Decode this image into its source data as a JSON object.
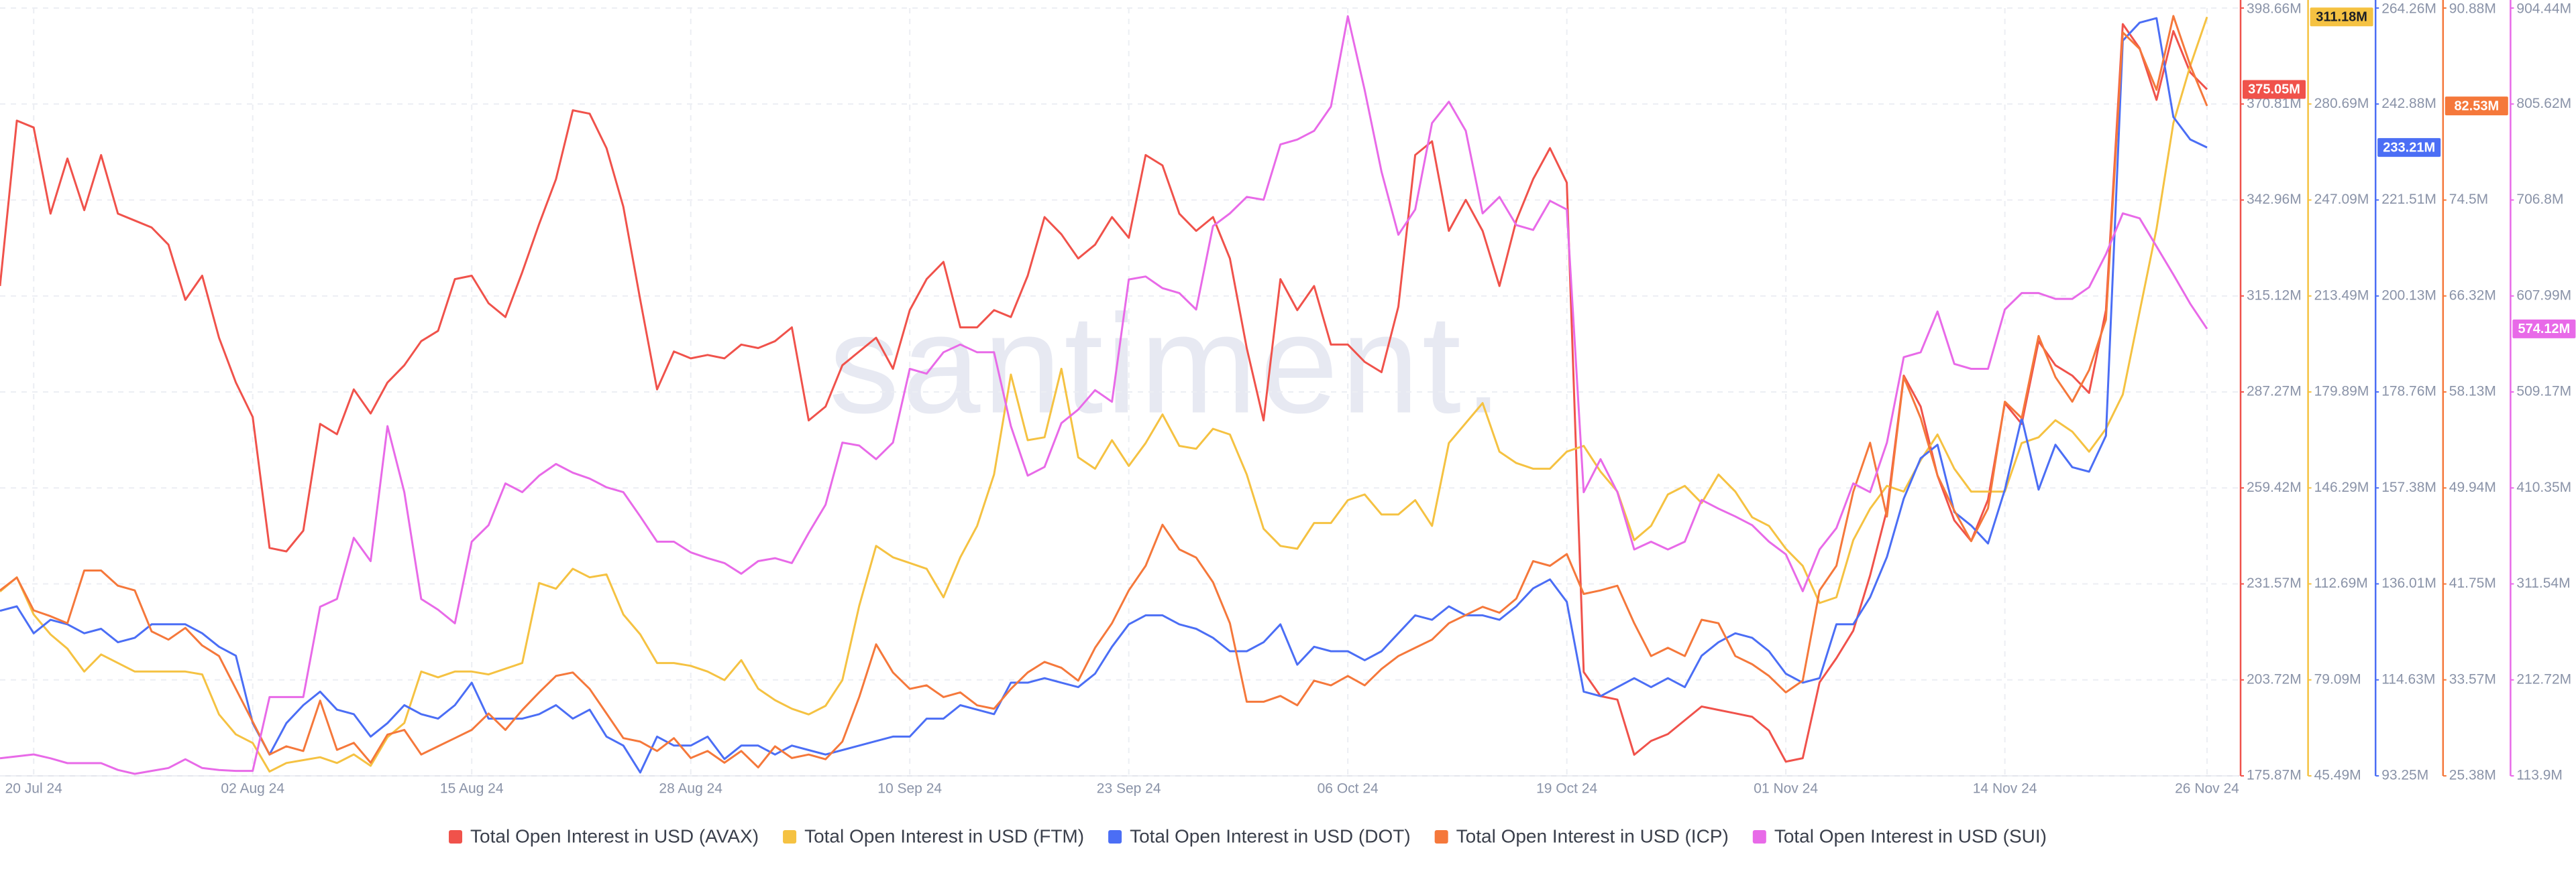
{
  "chart_data": {
    "type": "line",
    "grid": true,
    "watermark": "santiment.",
    "categories": [
      null,
      null,
      "20 Jul 24",
      null,
      null,
      null,
      null,
      null,
      null,
      null,
      null,
      null,
      null,
      null,
      null,
      "02 Aug 24",
      null,
      null,
      null,
      null,
      null,
      null,
      null,
      null,
      null,
      null,
      null,
      null,
      "15 Aug 24",
      null,
      null,
      null,
      null,
      null,
      null,
      null,
      null,
      null,
      null,
      null,
      null,
      "28 Aug 24",
      null,
      null,
      null,
      null,
      null,
      null,
      null,
      null,
      null,
      null,
      null,
      null,
      "10 Sep 24",
      null,
      null,
      null,
      null,
      null,
      null,
      null,
      null,
      null,
      null,
      null,
      null,
      "23 Sep 24",
      null,
      null,
      null,
      null,
      null,
      null,
      null,
      null,
      null,
      null,
      null,
      null,
      "06 Oct 24",
      null,
      null,
      null,
      null,
      null,
      null,
      null,
      null,
      null,
      null,
      null,
      null,
      "19 Oct 24",
      null,
      null,
      null,
      null,
      null,
      null,
      null,
      null,
      null,
      null,
      null,
      null,
      "01 Nov 24",
      null,
      null,
      null,
      null,
      null,
      null,
      null,
      null,
      null,
      null,
      null,
      null,
      "14 Nov 24",
      null,
      null,
      null,
      null,
      null,
      null,
      null,
      null,
      null,
      null,
      null,
      "26 Nov 24"
    ],
    "series": [
      {
        "name": "Total Open Interest in USD (AVAX)",
        "color": "#f0524b",
        "value_label": "375.05M",
        "ylim": [
          175.87,
          398.66
        ],
        "yticks": [
          {
            "value": 175.87,
            "label": "175.87M"
          },
          {
            "value": 203.72,
            "label": "203.72M"
          },
          {
            "value": 231.57,
            "label": "231.57M"
          },
          {
            "value": 259.42,
            "label": "259.42M"
          },
          {
            "value": 287.27,
            "label": "287.27M"
          },
          {
            "value": 315.12,
            "label": "315.12M"
          },
          {
            "value": 342.96,
            "label": "342.96M"
          },
          {
            "value": 370.81,
            "label": "370.81M"
          },
          {
            "value": 398.66,
            "label": "398.66M"
          }
        ],
        "values": [
          318,
          366,
          364,
          339,
          355,
          340,
          356,
          339,
          337,
          335,
          330,
          314,
          321,
          303,
          290,
          280,
          242,
          241,
          247,
          278,
          275,
          288,
          281,
          290,
          295,
          302,
          305,
          320,
          321,
          313,
          309,
          322,
          336,
          349,
          369,
          368,
          358,
          341,
          314,
          288,
          299,
          297,
          298,
          297,
          301,
          300,
          302,
          306,
          279,
          283,
          295,
          299,
          303,
          294,
          311,
          320,
          325,
          306,
          306,
          311,
          309,
          321,
          338,
          333,
          326,
          330,
          338,
          332,
          356,
          353,
          339,
          334,
          338,
          326,
          300,
          279,
          320,
          311,
          318,
          301,
          301,
          296,
          293,
          312,
          356,
          360,
          334,
          343,
          334,
          318,
          337,
          349,
          358,
          348,
          206,
          199,
          198,
          182,
          186,
          188,
          192,
          196,
          195,
          194,
          193,
          189,
          180,
          181,
          203,
          210,
          218,
          234,
          253,
          292,
          283,
          263,
          250,
          244,
          256,
          284,
          278,
          302,
          295,
          292,
          287,
          311,
          394,
          387,
          372,
          392,
          380,
          375.05
        ]
      },
      {
        "name": "Total Open Interest in USD (FTM)",
        "color": "#f5c242",
        "value_label": "311.18M",
        "ylim": [
          45.49,
          314.29
        ],
        "yticks": [
          {
            "value": 45.49,
            "label": "45.49M"
          },
          {
            "value": 79.09,
            "label": "79.09M"
          },
          {
            "value": 112.69,
            "label": "112.69M"
          },
          {
            "value": 146.29,
            "label": "146.29M"
          },
          {
            "value": 179.89,
            "label": "179.89M"
          },
          {
            "value": 213.49,
            "label": "213.49M"
          },
          {
            "value": 247.09,
            "label": "247.09M"
          },
          {
            "value": 280.69,
            "label": "280.69M"
          }
        ],
        "values": [
          110,
          115,
          102,
          95,
          90,
          82,
          88,
          85,
          82,
          82,
          82,
          82,
          81,
          67,
          60,
          57,
          47,
          50,
          51,
          52,
          50,
          53,
          49,
          59,
          64,
          82,
          80,
          82,
          82,
          81,
          83,
          85,
          113,
          111,
          118,
          115,
          116,
          102,
          95,
          85,
          85,
          84,
          82,
          79,
          86,
          76,
          72,
          69,
          67,
          70,
          79,
          105,
          126,
          122,
          120,
          118,
          108,
          122,
          133,
          151,
          186,
          163,
          164,
          188,
          157,
          153,
          163,
          154,
          162,
          172,
          161,
          160,
          167,
          165,
          151,
          132,
          126,
          125,
          134,
          134,
          142,
          144,
          137,
          137,
          142,
          133,
          162,
          169,
          176,
          159,
          155,
          153,
          153,
          159,
          161,
          152,
          145,
          128,
          133,
          144,
          147,
          141,
          151,
          145,
          136,
          133,
          125,
          119,
          106,
          108,
          128,
          139,
          147,
          145,
          156,
          165,
          153,
          145,
          145,
          145,
          162,
          164,
          170,
          166,
          159,
          167,
          179,
          208,
          237,
          274,
          294,
          311.18
        ]
      },
      {
        "name": "Total Open Interest in USD (DOT)",
        "color": "#4b6ef5",
        "value_label": "233.21M",
        "ylim": [
          93.25,
          264.26
        ],
        "yticks": [
          {
            "value": 93.25,
            "label": "93.25M"
          },
          {
            "value": 114.63,
            "label": "114.63M"
          },
          {
            "value": 136.01,
            "label": "136.01M"
          },
          {
            "value": 157.38,
            "label": "157.38M"
          },
          {
            "value": 178.76,
            "label": "178.76M"
          },
          {
            "value": 200.13,
            "label": "200.13M"
          },
          {
            "value": 221.51,
            "label": "221.51M"
          },
          {
            "value": 242.88,
            "label": "242.88M"
          },
          {
            "value": 264.26,
            "label": "264.26M"
          }
        ],
        "values": [
          130,
          131,
          125,
          128,
          127,
          125,
          126,
          123,
          124,
          127,
          127,
          127,
          125,
          122,
          120,
          105,
          98,
          105,
          109,
          112,
          108,
          107,
          102,
          105,
          109,
          107,
          106,
          109,
          114,
          106,
          106,
          106,
          107,
          109,
          106,
          108,
          102,
          100,
          94,
          102,
          100,
          100,
          102,
          97,
          100,
          100,
          98,
          100,
          99,
          98,
          99,
          100,
          101,
          102,
          102,
          106,
          106,
          109,
          108,
          107,
          114,
          114,
          115,
          114,
          113,
          116,
          122,
          127,
          129,
          129,
          127,
          126,
          124,
          121,
          121,
          123,
          127,
          118,
          122,
          121,
          121,
          119,
          121,
          125,
          129,
          128,
          131,
          129,
          129,
          128,
          131,
          135,
          137,
          132,
          112,
          111,
          113,
          115,
          113,
          115,
          113,
          120,
          123,
          125,
          124,
          121,
          116,
          114,
          115,
          127,
          127,
          133,
          142,
          155,
          164,
          167,
          152,
          149,
          145,
          157,
          173,
          157,
          167,
          162,
          161,
          169,
          257,
          261,
          262,
          240,
          235,
          233.21
        ]
      },
      {
        "name": "Total Open Interest in USD (ICP)",
        "color": "#f5783b",
        "value_label": "82.53M",
        "ylim": [
          25.38,
          90.88
        ],
        "yticks": [
          {
            "value": 25.38,
            "label": "25.38M"
          },
          {
            "value": 33.57,
            "label": "33.57M"
          },
          {
            "value": 41.75,
            "label": "41.75M"
          },
          {
            "value": 49.94,
            "label": "49.94M"
          },
          {
            "value": 58.13,
            "label": "58.13M"
          },
          {
            "value": 66.32,
            "label": "66.32M"
          },
          {
            "value": 74.5,
            "label": "74.5M"
          },
          {
            "value": 90.88,
            "label": "90.88M"
          }
        ],
        "values": [
          41.2,
          42.3,
          39.5,
          39,
          38.4,
          42.9,
          42.9,
          41.6,
          41.2,
          37.7,
          37,
          38,
          36.5,
          35.6,
          32.8,
          30,
          27.2,
          27.9,
          27.5,
          31.8,
          27.6,
          28.2,
          26.5,
          28.9,
          29.3,
          27.2,
          27.9,
          28.6,
          29.3,
          30.7,
          29.3,
          31,
          32.5,
          33.9,
          34.2,
          32.8,
          30.7,
          28.6,
          28.3,
          27.5,
          28.6,
          26.9,
          27.5,
          26.5,
          27.5,
          26.1,
          27.9,
          26.9,
          27.2,
          26.8,
          28.3,
          32.1,
          36.6,
          34.2,
          32.8,
          33.1,
          32.1,
          32.5,
          31.4,
          31.1,
          32.8,
          34.2,
          35.1,
          34.6,
          33.5,
          36.3,
          38.4,
          41.2,
          43.3,
          46.8,
          44.7,
          44,
          41.9,
          38.4,
          31.7,
          31.7,
          32.2,
          31.4,
          33.5,
          33.1,
          33.9,
          33.1,
          34.5,
          35.6,
          36.3,
          37,
          38.4,
          39.1,
          39.8,
          39.3,
          40.5,
          43.7,
          43.3,
          44.3,
          40.9,
          41.2,
          41.6,
          38.4,
          35.6,
          36.3,
          35.6,
          38.7,
          38.4,
          35.6,
          34.9,
          33.9,
          32.5,
          33.5,
          41.2,
          43.3,
          49.6,
          53.8,
          47.5,
          59.4,
          55.9,
          51,
          48,
          45.4,
          48.2,
          57.3,
          55.9,
          62.9,
          59.4,
          57.3,
          60,
          64.3,
          88.8,
          87.4,
          83.9,
          90.2,
          86,
          82.53
        ]
      },
      {
        "name": "Total Open Interest in USD (SUI)",
        "color": "#e86ae8",
        "value_label": "574.12M",
        "ylim": [
          113.9,
          904.44
        ],
        "yticks": [
          {
            "value": 113.9,
            "label": "113.9M"
          },
          {
            "value": 212.72,
            "label": "212.72M"
          },
          {
            "value": 311.54,
            "label": "311.54M"
          },
          {
            "value": 410.35,
            "label": "410.35M"
          },
          {
            "value": 509.17,
            "label": "509.17M"
          },
          {
            "value": 607.99,
            "label": "607.99M"
          },
          {
            "value": 706.8,
            "label": "706.8M"
          },
          {
            "value": 805.62,
            "label": "805.62M"
          },
          {
            "value": 904.44,
            "label": "904.44M"
          }
        ],
        "values": [
          132,
          134,
          136,
          132,
          127,
          127,
          127,
          120,
          116,
          119,
          122,
          131,
          122,
          120,
          119,
          119,
          195,
          195,
          195,
          288,
          296,
          359,
          335,
          474,
          406,
          296,
          285,
          271,
          355,
          372,
          415,
          406,
          423,
          435,
          426,
          420,
          411,
          406,
          381,
          355,
          355,
          344,
          338,
          333,
          322,
          335,
          338,
          333,
          364,
          393,
          457,
          454,
          440,
          457,
          533,
          528,
          550,
          558,
          550,
          550,
          474,
          423,
          432,
          477,
          491,
          511,
          499,
          625,
          628,
          616,
          611,
          594,
          680,
          693,
          710,
          707,
          764,
          769,
          778,
          803,
          896,
          820,
          736,
          671,
          697,
          786,
          808,
          778,
          693,
          710,
          681,
          676,
          706,
          697,
          406,
          440,
          406,
          347,
          355,
          347,
          355,
          398,
          389,
          381,
          372,
          355,
          342,
          304,
          347,
          369,
          415,
          406,
          457,
          545,
          550,
          592,
          538,
          533,
          533,
          594,
          611,
          611,
          605,
          605,
          617,
          651,
          693,
          688,
          659,
          630,
          600,
          574.12
        ]
      }
    ]
  }
}
